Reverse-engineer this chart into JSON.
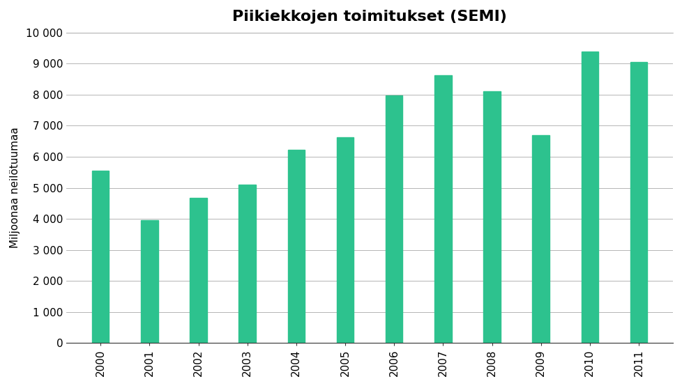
{
  "title": "Piikiekkojen toimitukset (SEMI)",
  "ylabel": "Miljoonaa neilötuumaa",
  "categories": [
    "2000",
    "2001",
    "2002",
    "2003",
    "2004",
    "2005",
    "2006",
    "2007",
    "2008",
    "2009",
    "2010",
    "2011"
  ],
  "values": [
    5550,
    3950,
    4670,
    5100,
    6230,
    6630,
    7980,
    8630,
    8100,
    6700,
    9380,
    9050
  ],
  "bar_color": "#2DC28E",
  "ylim": [
    0,
    10000
  ],
  "yticks": [
    0,
    1000,
    2000,
    3000,
    4000,
    5000,
    6000,
    7000,
    8000,
    9000,
    10000
  ],
  "background_color": "#ffffff",
  "title_fontsize": 16,
  "label_fontsize": 11,
  "tick_fontsize": 11,
  "bar_width": 0.35
}
